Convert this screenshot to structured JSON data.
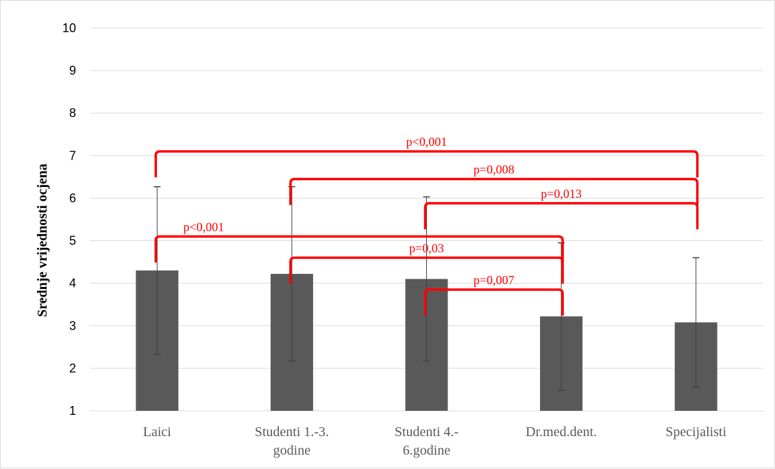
{
  "chart_data": {
    "type": "bar",
    "title": "",
    "xlabel": "",
    "ylabel": "Srednje vrijednosti ocjena",
    "ylim": [
      1,
      10
    ],
    "yticks": [
      "1",
      "2",
      "3",
      "4",
      "5",
      "6",
      "7",
      "8",
      "9",
      "10"
    ],
    "grid": true,
    "categories": [
      [
        "Laici"
      ],
      [
        "Studenti 1.-3.",
        "godine"
      ],
      [
        "Studenti 4.-",
        "6.godine"
      ],
      [
        "Dr.med.dent."
      ],
      [
        "Specijalisti"
      ]
    ],
    "series": [
      {
        "values": [
          4.3,
          4.22,
          4.1,
          3.22,
          3.08
        ],
        "error_low": [
          2.33,
          2.17,
          2.17,
          1.48,
          1.57
        ],
        "error_high": [
          6.27,
          6.27,
          6.03,
          4.95,
          4.6
        ]
      }
    ],
    "bar_color": "#595959",
    "error_color": "#404040",
    "grid_color": "#d9d9d9",
    "significance": [
      {
        "from": 0,
        "to": 4,
        "label": "p<0,001",
        "level": 7.1
      },
      {
        "from": 1,
        "to": 4,
        "label": "p=0,008",
        "level": 6.45
      },
      {
        "from": 2,
        "to": 4,
        "label": "p=0,013",
        "level": 5.88
      },
      {
        "from": 0,
        "to": 3,
        "label": "p<0,001",
        "level": 5.1
      },
      {
        "from": 1,
        "to": 3,
        "label": "p=0,03",
        "level": 4.6
      },
      {
        "from": 2,
        "to": 3,
        "label": "p=0,007",
        "level": 3.85
      }
    ],
    "significance_color": "#ff0000"
  }
}
